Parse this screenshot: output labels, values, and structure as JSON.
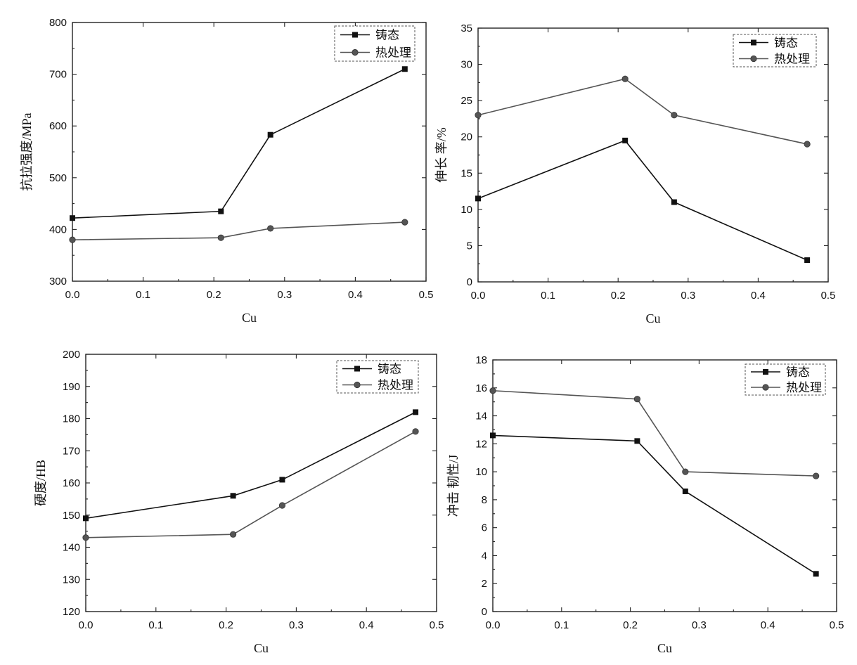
{
  "chart_data": [
    {
      "type": "line",
      "xlabel": "Cu",
      "ylabel": "抗拉强度/MPa",
      "xlim": [
        0,
        0.5
      ],
      "ylim": [
        300,
        800
      ],
      "xticks": [
        0.0,
        0.1,
        0.2,
        0.3,
        0.4,
        0.5
      ],
      "xtick_labels": [
        "0.0",
        "0.1",
        "0.2",
        "0.3",
        "0.4",
        "0.5"
      ],
      "yticks": [
        300,
        400,
        500,
        600,
        700,
        800
      ],
      "ytick_labels": [
        "300",
        "400",
        "500",
        "600",
        "700",
        "800"
      ],
      "x": [
        0.0,
        0.21,
        0.28,
        0.47
      ],
      "legend_position": "top-right",
      "grid": false,
      "series": [
        {
          "name": "铸态",
          "values": [
            422,
            435,
            583,
            710
          ],
          "marker": "square",
          "color": "#111111"
        },
        {
          "name": "热处理",
          "values": [
            380,
            384,
            402,
            414
          ],
          "marker": "circle",
          "color": "#555555"
        }
      ]
    },
    {
      "type": "line",
      "xlabel": "Cu",
      "ylabel": "伸长 率/%",
      "xlim": [
        0,
        0.5
      ],
      "ylim": [
        0,
        35
      ],
      "xticks": [
        0.0,
        0.1,
        0.2,
        0.3,
        0.4,
        0.5
      ],
      "xtick_labels": [
        "0.0",
        "0.1",
        "0.2",
        "0.3",
        "0.4",
        "0.5"
      ],
      "yticks": [
        0,
        5,
        10,
        15,
        20,
        25,
        30,
        35
      ],
      "ytick_labels": [
        "0",
        "5",
        "10",
        "15",
        "20",
        "25",
        "30",
        "35"
      ],
      "x": [
        0.0,
        0.21,
        0.28,
        0.47
      ],
      "legend_position": "top-right",
      "grid": false,
      "series": [
        {
          "name": "铸态",
          "values": [
            11.5,
            19.5,
            11,
            3
          ],
          "marker": "square",
          "color": "#111111"
        },
        {
          "name": "热处理",
          "values": [
            23,
            28,
            23,
            19
          ],
          "marker": "circle",
          "color": "#555555"
        }
      ]
    },
    {
      "type": "line",
      "xlabel": "Cu",
      "ylabel": "硬度/HB",
      "xlim": [
        0,
        0.5
      ],
      "ylim": [
        120,
        200
      ],
      "xticks": [
        0.0,
        0.1,
        0.2,
        0.3,
        0.4,
        0.5
      ],
      "xtick_labels": [
        "0.0",
        "0.1",
        "0.2",
        "0.3",
        "0.4",
        "0.5"
      ],
      "yticks": [
        120,
        130,
        140,
        150,
        160,
        170,
        180,
        190,
        200
      ],
      "ytick_labels": [
        "120",
        "130",
        "140",
        "150",
        "160",
        "170",
        "180",
        "190",
        "200"
      ],
      "x": [
        0.0,
        0.21,
        0.28,
        0.47
      ],
      "legend_position": "top-right",
      "grid": false,
      "series": [
        {
          "name": "铸态",
          "values": [
            149,
            156,
            161,
            182
          ],
          "marker": "square",
          "color": "#111111"
        },
        {
          "name": "热处理",
          "values": [
            143,
            144,
            153,
            176
          ],
          "marker": "circle",
          "color": "#555555"
        }
      ]
    },
    {
      "type": "line",
      "xlabel": "Cu",
      "ylabel": "冲击 韧性/J",
      "xlim": [
        0,
        0.5
      ],
      "ylim": [
        0,
        18
      ],
      "xticks": [
        0.0,
        0.1,
        0.2,
        0.3,
        0.4,
        0.5
      ],
      "xtick_labels": [
        "0.0",
        "0.1",
        "0.2",
        "0.3",
        "0.4",
        "0.5"
      ],
      "yticks": [
        0,
        2,
        4,
        6,
        8,
        10,
        12,
        14,
        16,
        18
      ],
      "ytick_labels": [
        "0",
        "2",
        "4",
        "6",
        "8",
        "10",
        "12",
        "14",
        "16",
        "18"
      ],
      "x": [
        0.0,
        0.21,
        0.28,
        0.47
      ],
      "legend_position": "top-right",
      "grid": false,
      "series": [
        {
          "name": "铸态",
          "values": [
            12.6,
            12.2,
            8.6,
            2.7
          ],
          "marker": "square",
          "color": "#111111"
        },
        {
          "name": "热处理",
          "values": [
            15.8,
            15.2,
            10,
            9.7
          ],
          "marker": "circle",
          "color": "#555555"
        }
      ]
    }
  ]
}
